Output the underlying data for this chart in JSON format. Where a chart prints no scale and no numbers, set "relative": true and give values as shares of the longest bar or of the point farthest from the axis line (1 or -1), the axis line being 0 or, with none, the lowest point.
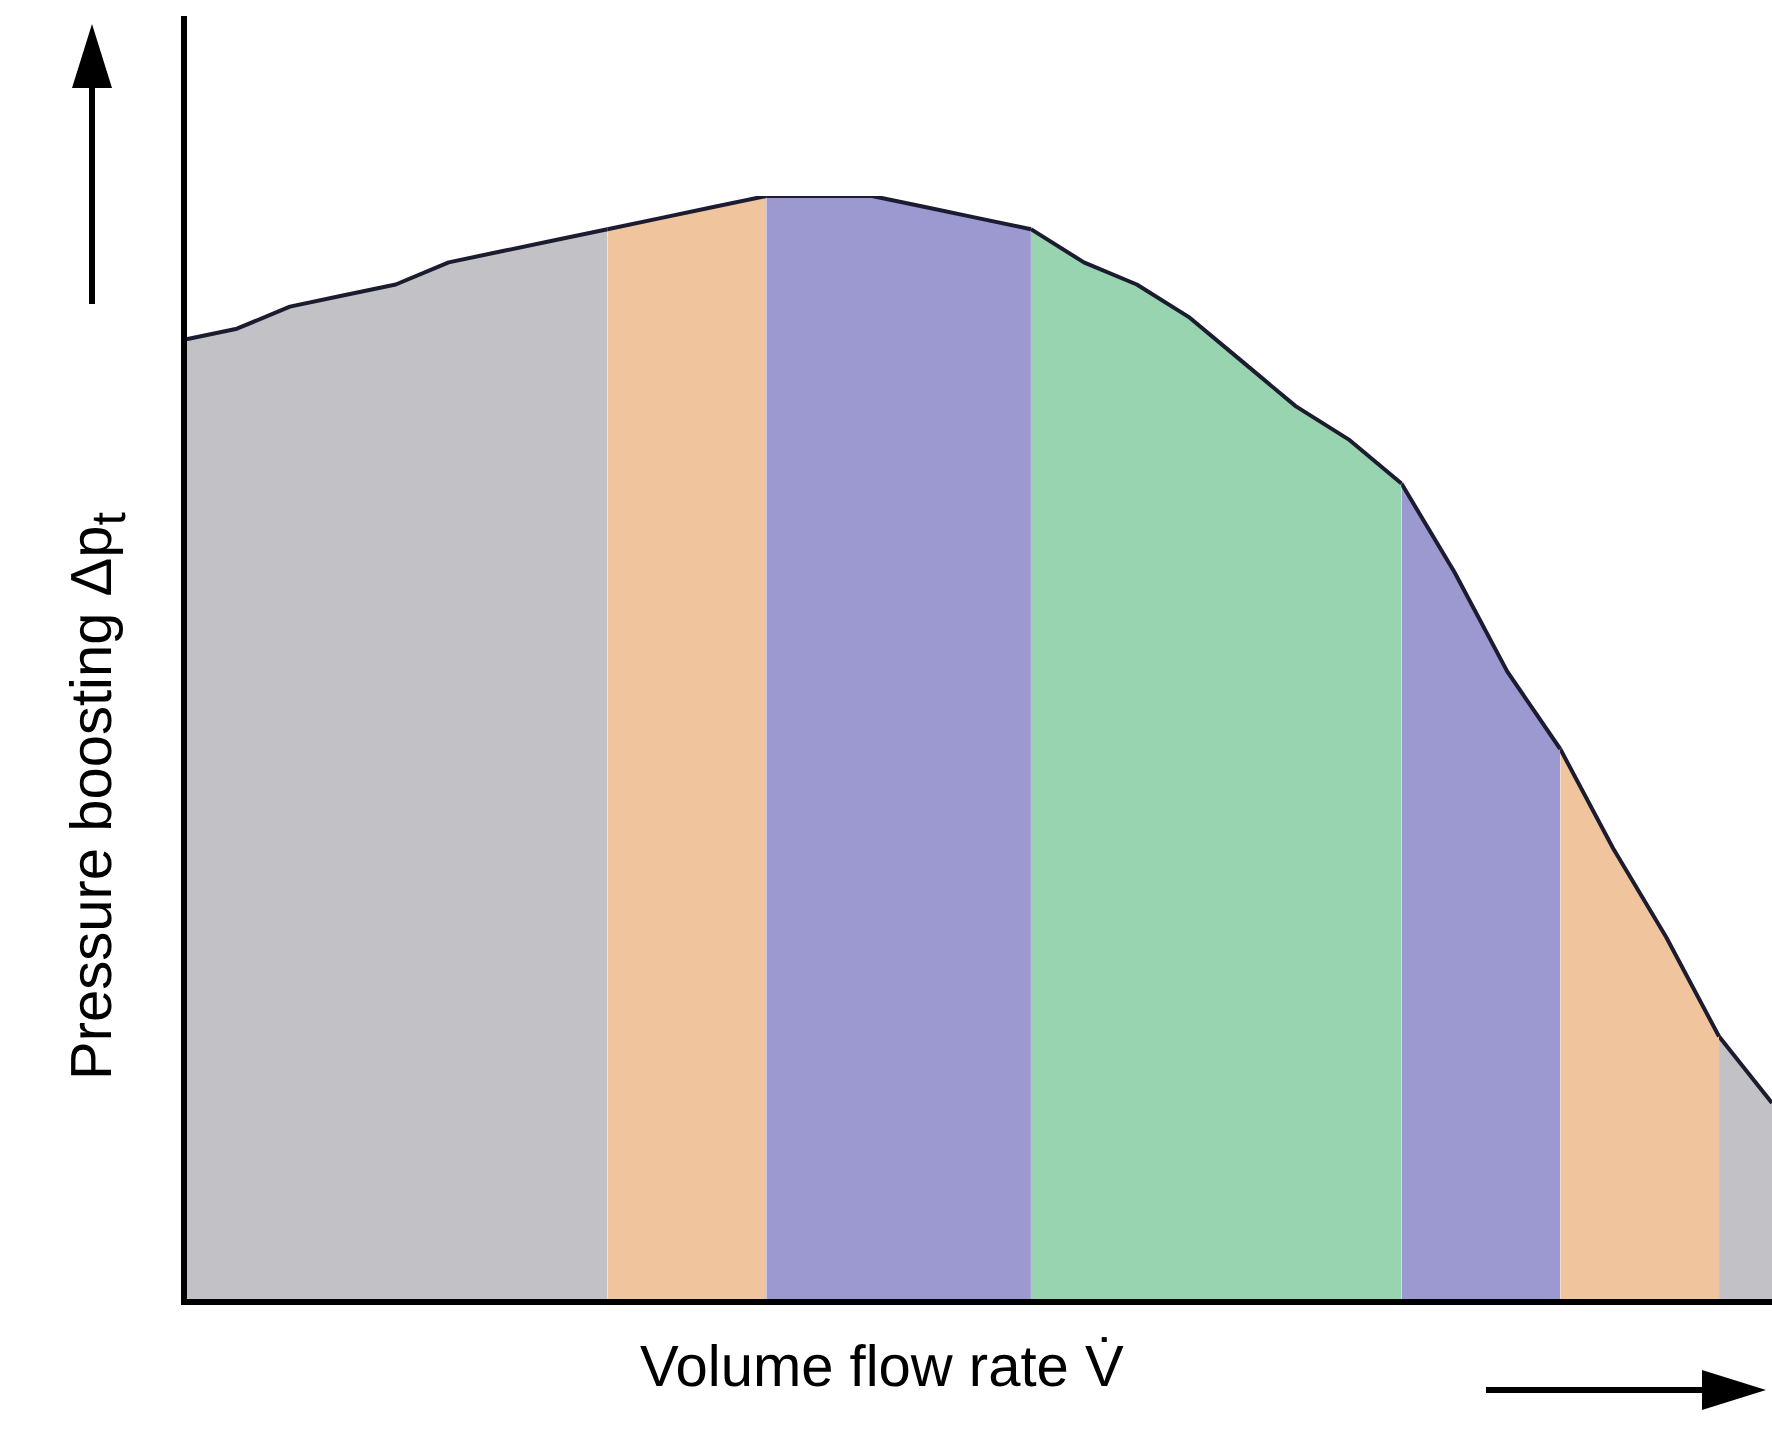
{
  "chart_data": {
    "type": "area",
    "xlabel": "Volume flow rate V̇",
    "ylabel": "Pressure boosting Δp$_{t}$",
    "relative": true,
    "legend": false,
    "marker": "none",
    "categories": [
      null,
      null,
      null,
      null,
      null,
      null,
      null,
      null,
      null,
      null,
      null,
      null,
      null,
      null,
      null,
      null,
      null,
      null,
      null,
      null,
      null,
      null,
      null,
      null,
      null,
      null,
      null,
      null,
      null,
      null,
      null
    ],
    "series": [
      {
        "color": "#c2c2c6",
        "values": [
          0.87,
          0.88,
          0.9,
          0.91,
          0.92,
          0.94,
          0.95,
          0.96,
          0.97,
          null,
          null,
          null,
          null,
          null,
          null,
          null,
          null,
          null,
          null,
          null,
          null,
          null,
          null,
          null,
          null,
          null,
          null,
          null,
          null,
          null,
          null
        ]
      },
      {
        "color": "#f0c49c",
        "values": [
          null,
          null,
          null,
          null,
          null,
          null,
          null,
          null,
          0.97,
          0.98,
          0.99,
          1.0,
          null,
          null,
          null,
          null,
          null,
          null,
          null,
          null,
          null,
          null,
          null,
          null,
          null,
          null,
          null,
          null,
          null,
          null,
          null
        ]
      },
      {
        "color": "#9c98d0",
        "values": [
          null,
          null,
          null,
          null,
          null,
          null,
          null,
          null,
          null,
          null,
          null,
          1.0,
          1.0,
          1.0,
          0.99,
          0.98,
          0.97,
          null,
          null,
          null,
          null,
          null,
          null,
          null,
          null,
          null,
          null,
          null,
          null,
          null,
          null
        ]
      },
      {
        "color": "#98d4b0",
        "values": [
          null,
          null,
          null,
          null,
          null,
          null,
          null,
          null,
          null,
          null,
          null,
          null,
          null,
          null,
          null,
          null,
          0.97,
          0.94,
          0.92,
          0.89,
          0.85,
          0.81,
          0.78,
          0.74,
          null,
          null,
          null,
          null,
          null,
          null,
          null
        ]
      },
      {
        "color": "#9c98d0",
        "values": [
          null,
          null,
          null,
          null,
          null,
          null,
          null,
          null,
          null,
          null,
          null,
          null,
          null,
          null,
          null,
          null,
          null,
          null,
          null,
          null,
          null,
          null,
          null,
          0.74,
          0.66,
          0.57,
          0.5,
          null,
          null,
          null,
          null
        ]
      },
      {
        "color": "#f0c49c",
        "values": [
          null,
          null,
          null,
          null,
          null,
          null,
          null,
          null,
          null,
          null,
          null,
          null,
          null,
          null,
          null,
          null,
          null,
          null,
          null,
          null,
          null,
          null,
          null,
          null,
          null,
          null,
          0.5,
          0.41,
          0.33,
          0.24,
          null
        ]
      },
      {
        "color": "#c2c2c6",
        "values": [
          null,
          null,
          null,
          null,
          null,
          null,
          null,
          null,
          null,
          null,
          null,
          null,
          null,
          null,
          null,
          null,
          null,
          null,
          null,
          null,
          null,
          null,
          null,
          null,
          null,
          null,
          null,
          null,
          null,
          0.24,
          0.18
        ]
      }
    ]
  }
}
